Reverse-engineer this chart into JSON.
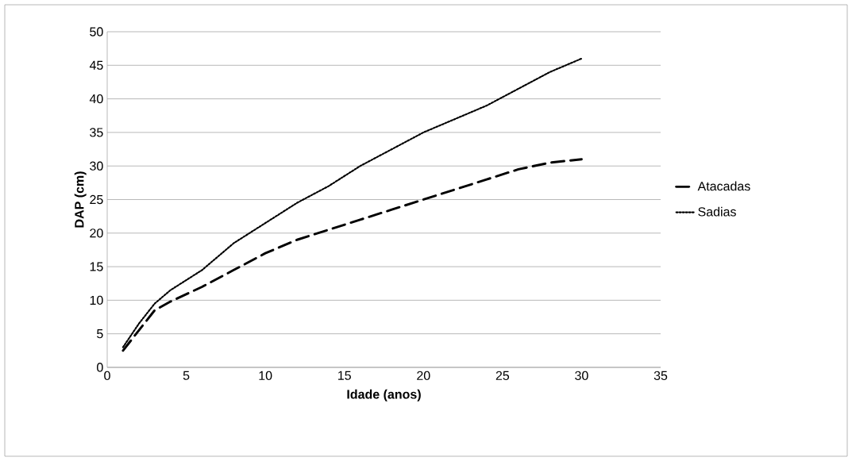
{
  "chart_data": {
    "type": "line",
    "xlabel": "Idade (anos)",
    "ylabel": "DAP (cm)",
    "xlim": [
      0,
      35
    ],
    "xticks": [
      0,
      5,
      10,
      15,
      20,
      25,
      30,
      35
    ],
    "ylim": [
      0,
      50
    ],
    "yticks": [
      0,
      5,
      10,
      15,
      20,
      25,
      30,
      35,
      40,
      45,
      50
    ],
    "grid": "y",
    "legend": "right",
    "marker": "none",
    "series": [
      {
        "name": "Atacadas",
        "color": "#000000",
        "line_style": "dashed",
        "x": [
          1,
          2,
          3,
          4,
          6,
          8,
          10,
          12,
          14,
          16,
          18,
          20,
          22,
          24,
          26,
          28,
          30
        ],
        "values": [
          2.5,
          5.5,
          8.5,
          9.8,
          12,
          14.5,
          17,
          19,
          20.5,
          22,
          23.5,
          25,
          26.5,
          28,
          29.5,
          30.5,
          31
        ]
      },
      {
        "name": "Sadias",
        "color": "#000000",
        "line_style": "dotted",
        "x": [
          1,
          2,
          3,
          4,
          5,
          6,
          7,
          8,
          10,
          12,
          14,
          16,
          18,
          20,
          22,
          24,
          26,
          28,
          30
        ],
        "values": [
          3,
          6.5,
          9.5,
          11.5,
          13,
          14.5,
          16.5,
          18.5,
          21.5,
          24.5,
          27,
          30,
          32.5,
          35,
          37,
          39,
          41.5,
          44,
          46
        ]
      }
    ]
  }
}
